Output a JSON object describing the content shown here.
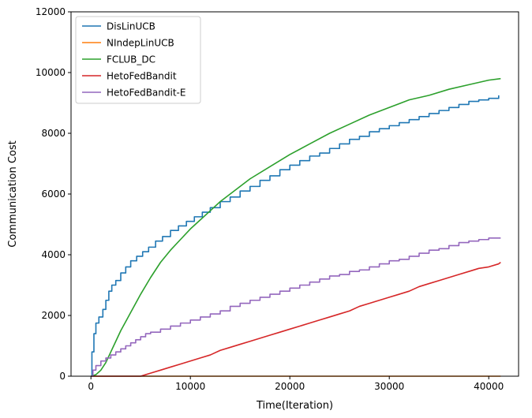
{
  "chart_data": {
    "type": "line",
    "title": "",
    "xlabel": "Time(Iteration)",
    "ylabel": "Communication Cost",
    "xlim": [
      -2000,
      43000
    ],
    "ylim": [
      0,
      12000
    ],
    "xticks": [
      0,
      10000,
      20000,
      30000,
      40000
    ],
    "yticks": [
      0,
      2000,
      4000,
      6000,
      8000,
      10000,
      12000
    ],
    "grid": false,
    "legend_position": "top-left",
    "series": [
      {
        "name": "DisLinUCB",
        "color": "#1f77b4",
        "style": "step",
        "points": [
          [
            0,
            0
          ],
          [
            100,
            800
          ],
          [
            300,
            1400
          ],
          [
            500,
            1750
          ],
          [
            800,
            1950
          ],
          [
            1200,
            2200
          ],
          [
            1500,
            2500
          ],
          [
            1800,
            2800
          ],
          [
            2100,
            3000
          ],
          [
            2500,
            3150
          ],
          [
            3000,
            3400
          ],
          [
            3500,
            3600
          ],
          [
            4000,
            3800
          ],
          [
            4600,
            3950
          ],
          [
            5200,
            4100
          ],
          [
            5800,
            4250
          ],
          [
            6500,
            4450
          ],
          [
            7200,
            4600
          ],
          [
            8000,
            4800
          ],
          [
            8800,
            4950
          ],
          [
            9600,
            5100
          ],
          [
            10400,
            5250
          ],
          [
            11200,
            5400
          ],
          [
            12000,
            5550
          ],
          [
            13000,
            5750
          ],
          [
            14000,
            5900
          ],
          [
            15000,
            6100
          ],
          [
            16000,
            6250
          ],
          [
            17000,
            6450
          ],
          [
            18000,
            6600
          ],
          [
            19000,
            6800
          ],
          [
            20000,
            6950
          ],
          [
            21000,
            7100
          ],
          [
            22000,
            7250
          ],
          [
            23000,
            7350
          ],
          [
            24000,
            7500
          ],
          [
            25000,
            7650
          ],
          [
            26000,
            7800
          ],
          [
            27000,
            7900
          ],
          [
            28000,
            8050
          ],
          [
            29000,
            8150
          ],
          [
            30000,
            8250
          ],
          [
            31000,
            8350
          ],
          [
            32000,
            8450
          ],
          [
            33000,
            8550
          ],
          [
            34000,
            8650
          ],
          [
            35000,
            8750
          ],
          [
            36000,
            8850
          ],
          [
            37000,
            8950
          ],
          [
            38000,
            9050
          ],
          [
            39000,
            9100
          ],
          [
            40000,
            9150
          ],
          [
            41000,
            9250
          ]
        ]
      },
      {
        "name": "NIndepLinUCB",
        "color": "#ff7f0e",
        "style": "line",
        "points": [
          [
            0,
            0
          ],
          [
            41200,
            0
          ]
        ]
      },
      {
        "name": "FCLUB_DC",
        "color": "#2ca02c",
        "style": "line",
        "points": [
          [
            0,
            0
          ],
          [
            500,
            50
          ],
          [
            1000,
            200
          ],
          [
            1500,
            450
          ],
          [
            2000,
            800
          ],
          [
            2500,
            1150
          ],
          [
            3000,
            1500
          ],
          [
            3500,
            1800
          ],
          [
            4000,
            2100
          ],
          [
            5000,
            2700
          ],
          [
            6000,
            3250
          ],
          [
            7000,
            3750
          ],
          [
            8000,
            4150
          ],
          [
            9000,
            4500
          ],
          [
            10000,
            4850
          ],
          [
            11000,
            5150
          ],
          [
            12000,
            5450
          ],
          [
            13000,
            5750
          ],
          [
            14000,
            6000
          ],
          [
            15000,
            6250
          ],
          [
            16000,
            6500
          ],
          [
            18000,
            6900
          ],
          [
            20000,
            7300
          ],
          [
            22000,
            7650
          ],
          [
            24000,
            8000
          ],
          [
            26000,
            8300
          ],
          [
            28000,
            8600
          ],
          [
            30000,
            8850
          ],
          [
            32000,
            9100
          ],
          [
            34000,
            9250
          ],
          [
            36000,
            9450
          ],
          [
            38000,
            9600
          ],
          [
            40000,
            9750
          ],
          [
            41200,
            9800
          ]
        ]
      },
      {
        "name": "HetoFedBandit",
        "color": "#d62728",
        "style": "line",
        "points": [
          [
            0,
            0
          ],
          [
            5000,
            0
          ],
          [
            5500,
            50
          ],
          [
            6000,
            100
          ],
          [
            7000,
            200
          ],
          [
            8000,
            300
          ],
          [
            9000,
            400
          ],
          [
            10000,
            500
          ],
          [
            11000,
            600
          ],
          [
            12000,
            700
          ],
          [
            13000,
            850
          ],
          [
            14000,
            950
          ],
          [
            15000,
            1050
          ],
          [
            16000,
            1150
          ],
          [
            17000,
            1250
          ],
          [
            18000,
            1350
          ],
          [
            19000,
            1450
          ],
          [
            20000,
            1550
          ],
          [
            21000,
            1650
          ],
          [
            22000,
            1750
          ],
          [
            23000,
            1850
          ],
          [
            24000,
            1950
          ],
          [
            25000,
            2050
          ],
          [
            26000,
            2150
          ],
          [
            27000,
            2300
          ],
          [
            28000,
            2400
          ],
          [
            29000,
            2500
          ],
          [
            30000,
            2600
          ],
          [
            31000,
            2700
          ],
          [
            32000,
            2800
          ],
          [
            33000,
            2950
          ],
          [
            34000,
            3050
          ],
          [
            35000,
            3150
          ],
          [
            36000,
            3250
          ],
          [
            37000,
            3350
          ],
          [
            38000,
            3450
          ],
          [
            39000,
            3550
          ],
          [
            40000,
            3600
          ],
          [
            41000,
            3700
          ],
          [
            41200,
            3750
          ]
        ]
      },
      {
        "name": "HetoFedBandit-E",
        "color": "#9467bd",
        "style": "step",
        "points": [
          [
            0,
            0
          ],
          [
            200,
            200
          ],
          [
            500,
            350
          ],
          [
            1000,
            500
          ],
          [
            1500,
            600
          ],
          [
            2000,
            700
          ],
          [
            2500,
            800
          ],
          [
            3000,
            900
          ],
          [
            3500,
            1000
          ],
          [
            4000,
            1100
          ],
          [
            4500,
            1200
          ],
          [
            5000,
            1300
          ],
          [
            5500,
            1400
          ],
          [
            6000,
            1450
          ],
          [
            7000,
            1550
          ],
          [
            8000,
            1650
          ],
          [
            9000,
            1750
          ],
          [
            10000,
            1850
          ],
          [
            11000,
            1950
          ],
          [
            12000,
            2050
          ],
          [
            13000,
            2150
          ],
          [
            14000,
            2300
          ],
          [
            15000,
            2400
          ],
          [
            16000,
            2500
          ],
          [
            17000,
            2600
          ],
          [
            18000,
            2700
          ],
          [
            19000,
            2800
          ],
          [
            20000,
            2900
          ],
          [
            21000,
            3000
          ],
          [
            22000,
            3100
          ],
          [
            23000,
            3200
          ],
          [
            24000,
            3300
          ],
          [
            25000,
            3350
          ],
          [
            26000,
            3450
          ],
          [
            27000,
            3500
          ],
          [
            28000,
            3600
          ],
          [
            29000,
            3700
          ],
          [
            30000,
            3800
          ],
          [
            31000,
            3850
          ],
          [
            32000,
            3950
          ],
          [
            33000,
            4050
          ],
          [
            34000,
            4150
          ],
          [
            35000,
            4200
          ],
          [
            36000,
            4300
          ],
          [
            37000,
            4400
          ],
          [
            38000,
            4450
          ],
          [
            39000,
            4500
          ],
          [
            40000,
            4550
          ],
          [
            41200,
            4550
          ]
        ]
      }
    ]
  }
}
